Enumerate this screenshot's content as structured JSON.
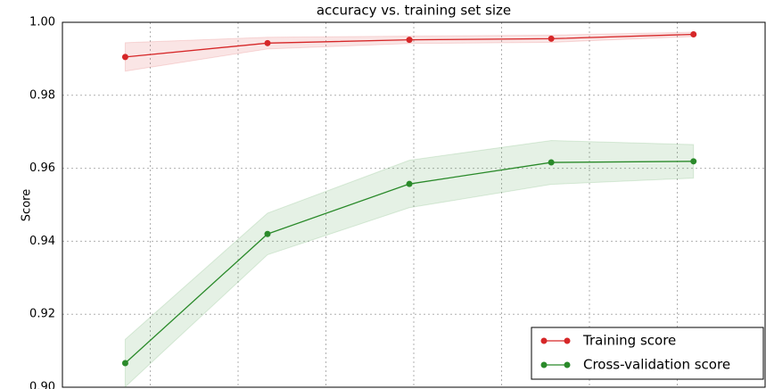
{
  "chart_data": {
    "type": "line",
    "title": "accuracy vs. training set size",
    "y_label": "Score",
    "x": [
      143,
      467,
      790,
      1113,
      1437
    ],
    "series": [
      {
        "name": "Training score",
        "color": "#d62728",
        "values": [
          0.9905,
          0.9943,
          0.9952,
          0.9955,
          0.9967
        ],
        "std": [
          0.0039,
          0.0016,
          0.001,
          0.001,
          0.0006
        ]
      },
      {
        "name": "Cross-validation score",
        "color": "#2a8a2a",
        "values": [
          0.9066,
          0.942,
          0.9557,
          0.9616,
          0.9619
        ],
        "std": [
          0.0065,
          0.0057,
          0.0065,
          0.006,
          0.0046
        ]
      }
    ],
    "xlim": [
      0,
      1600
    ],
    "xticks": [
      0,
      200,
      400,
      600,
      800,
      1000,
      1200,
      1400,
      1600
    ],
    "ylim": [
      0.9,
      1.0
    ],
    "yticks": [
      {
        "value": 0.9,
        "label": "0.90"
      },
      0.92,
      0.94,
      0.96,
      0.98,
      {
        "value": 1.0,
        "label": "1.00"
      }
    ],
    "grid": true,
    "legend": "lower right"
  }
}
